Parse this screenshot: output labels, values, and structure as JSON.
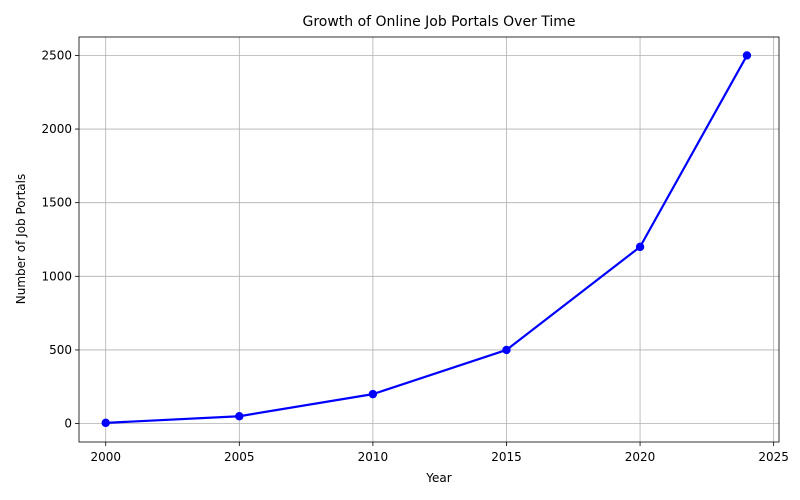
{
  "chart_data": {
    "type": "line",
    "title": "Growth of Online Job Portals Over Time",
    "xlabel": "Year",
    "ylabel": "Number of Job Portals",
    "x": [
      2000,
      2005,
      2010,
      2015,
      2020,
      2024
    ],
    "series": [
      {
        "values": [
          5,
          50,
          200,
          500,
          1200,
          2500
        ],
        "color": "#0000ff",
        "marker": "circle"
      }
    ],
    "xlim": [
      1999,
      2025.2
    ],
    "ylim": [
      -125,
      2625
    ],
    "xticks": [
      2000,
      2005,
      2010,
      2015,
      2020,
      2025
    ],
    "yticks": [
      0,
      500,
      1000,
      1500,
      2000,
      2500
    ],
    "grid": true,
    "legend": "none"
  }
}
